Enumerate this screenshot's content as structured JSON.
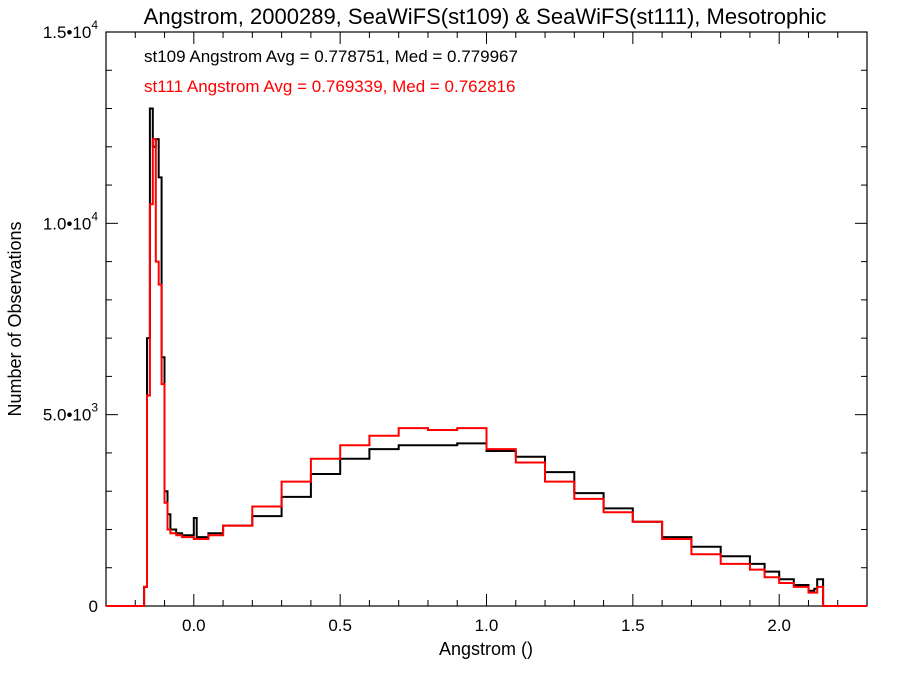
{
  "chart_data": {
    "type": "line",
    "step": true,
    "title": "Angstrom, 2000289, SeaWiFS(st109) & SeaWiFS(st111), Mesotrophic",
    "xlabel": "Angstrom ()",
    "ylabel": "Number of Observations",
    "xlim": [
      -0.3,
      2.3
    ],
    "ylim": [
      0,
      15000
    ],
    "xticks": [
      {
        "value": 0.0,
        "label": "0.0"
      },
      {
        "value": 0.5,
        "label": "0.5"
      },
      {
        "value": 1.0,
        "label": "1.0"
      },
      {
        "value": 1.5,
        "label": "1.5"
      },
      {
        "value": 2.0,
        "label": "2.0"
      }
    ],
    "yticks": [
      {
        "value": 0,
        "base": "0",
        "exp": ""
      },
      {
        "value": 5000,
        "base": "5.0•10",
        "exp": "3"
      },
      {
        "value": 10000,
        "base": "1.0•10",
        "exp": "4"
      },
      {
        "value": 15000,
        "base": "1.5•10",
        "exp": "4"
      }
    ],
    "grid": false,
    "annotations": [
      {
        "id": "st109",
        "text": "st109 Angstrom Avg = 0.778751, Med = 0.779967",
        "color": "#000000"
      },
      {
        "id": "st111",
        "text": "st111 Angstrom Avg = 0.769339, Med = 0.762816",
        "color": "#ff0000"
      }
    ],
    "series": [
      {
        "id": "st109",
        "color": "#000000",
        "x": [
          -0.3,
          -0.17,
          -0.16,
          -0.15,
          -0.14,
          -0.13,
          -0.12,
          -0.11,
          -0.1,
          -0.09,
          -0.08,
          -0.06,
          -0.04,
          0.0,
          0.01,
          0.05,
          0.1,
          0.2,
          0.3,
          0.4,
          0.5,
          0.6,
          0.7,
          0.8,
          0.9,
          1.0,
          1.1,
          1.2,
          1.3,
          1.4,
          1.5,
          1.6,
          1.7,
          1.8,
          1.9,
          1.95,
          2.0,
          2.05,
          2.1,
          2.12,
          2.13,
          2.15,
          2.3
        ],
        "y": [
          0,
          500,
          7000,
          13000,
          12000,
          12200,
          11200,
          6500,
          3000,
          2400,
          2000,
          1900,
          1850,
          2300,
          1800,
          1900,
          2100,
          2350,
          2850,
          3450,
          3850,
          4100,
          4200,
          4200,
          4250,
          4050,
          3900,
          3500,
          2950,
          2550,
          2200,
          1800,
          1550,
          1300,
          1100,
          900,
          700,
          550,
          400,
          450,
          700,
          0,
          0
        ]
      },
      {
        "id": "st111",
        "color": "#ff0000",
        "x": [
          -0.3,
          -0.17,
          -0.16,
          -0.15,
          -0.14,
          -0.13,
          -0.12,
          -0.11,
          -0.1,
          -0.09,
          -0.08,
          -0.06,
          -0.04,
          0.0,
          0.05,
          0.1,
          0.2,
          0.3,
          0.4,
          0.5,
          0.6,
          0.7,
          0.8,
          0.9,
          1.0,
          1.1,
          1.2,
          1.3,
          1.4,
          1.5,
          1.6,
          1.7,
          1.8,
          1.9,
          1.95,
          2.0,
          2.05,
          2.1,
          2.13,
          2.15,
          2.3
        ],
        "y": [
          0,
          500,
          5500,
          10500,
          12200,
          9000,
          8400,
          5800,
          2700,
          2000,
          1900,
          1850,
          1800,
          1750,
          1850,
          2100,
          2600,
          3250,
          3850,
          4200,
          4450,
          4650,
          4600,
          4650,
          4100,
          3750,
          3250,
          2800,
          2450,
          2200,
          1750,
          1350,
          1100,
          950,
          750,
          600,
          500,
          350,
          500,
          0,
          0
        ]
      }
    ]
  }
}
